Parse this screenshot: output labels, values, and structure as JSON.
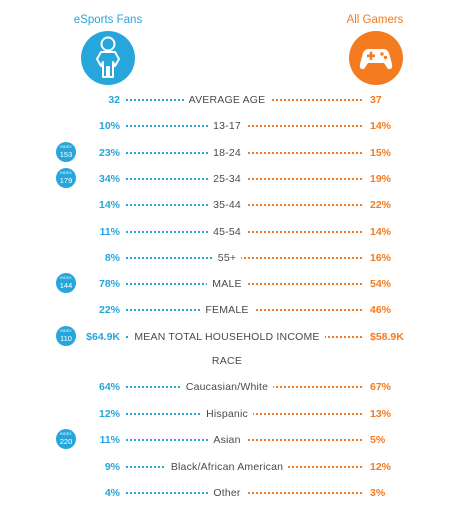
{
  "headers": {
    "left": "eSports Fans",
    "right": "All Gamers"
  },
  "colors": {
    "fans": "#27a6dc",
    "gamers": "#f47b20",
    "text": "#4a4a4a"
  },
  "icons": {
    "left": "person-icon",
    "right": "gamepad-icon"
  },
  "index_label": "INDEX",
  "rows": [
    {
      "label": "AVERAGE AGE",
      "fans": "32",
      "gamers": "37",
      "index": null
    },
    {
      "label": "13-17",
      "fans": "10%",
      "gamers": "14%",
      "index": null
    },
    {
      "label": "18-24",
      "fans": "23%",
      "gamers": "15%",
      "index": "153"
    },
    {
      "label": "25-34",
      "fans": "34%",
      "gamers": "19%",
      "index": "179"
    },
    {
      "label": "35-44",
      "fans": "14%",
      "gamers": "22%",
      "index": null
    },
    {
      "label": "45-54",
      "fans": "11%",
      "gamers": "14%",
      "index": null
    },
    {
      "label": "55+",
      "fans": "8%",
      "gamers": "16%",
      "index": null
    },
    {
      "label": "MALE",
      "fans": "78%",
      "gamers": "54%",
      "index": "144"
    },
    {
      "label": "FEMALE",
      "fans": "22%",
      "gamers": "46%",
      "index": null
    },
    {
      "label": "MEAN TOTAL HOUSEHOLD INCOME",
      "fans": "$64.9K",
      "gamers": "$58.9K",
      "index": "110"
    }
  ],
  "race_title": "RACE",
  "race_rows": [
    {
      "label": "Caucasian/White",
      "fans": "64%",
      "gamers": "67%",
      "index": null
    },
    {
      "label": "Hispanic",
      "fans": "12%",
      "gamers": "13%",
      "index": null
    },
    {
      "label": "Asian",
      "fans": "11%",
      "gamers": "5%",
      "index": "220"
    },
    {
      "label": "Black/African American",
      "fans": "9%",
      "gamers": "12%",
      "index": null
    },
    {
      "label": "Other",
      "fans": "4%",
      "gamers": "3%",
      "index": null
    }
  ],
  "chart_data": {
    "type": "table",
    "columns": [
      "eSports Fans",
      "All Gamers"
    ],
    "rows": [
      {
        "label": "AVERAGE AGE",
        "esports_fans": 32,
        "all_gamers": 37,
        "index": null
      },
      {
        "label": "13-17",
        "esports_fans": 10,
        "all_gamers": 14,
        "index": null
      },
      {
        "label": "18-24",
        "esports_fans": 23,
        "all_gamers": 15,
        "index": 153
      },
      {
        "label": "25-34",
        "esports_fans": 34,
        "all_gamers": 19,
        "index": 179
      },
      {
        "label": "35-44",
        "esports_fans": 14,
        "all_gamers": 22,
        "index": null
      },
      {
        "label": "45-54",
        "esports_fans": 11,
        "all_gamers": 14,
        "index": null
      },
      {
        "label": "55+",
        "esports_fans": 8,
        "all_gamers": 16,
        "index": null
      },
      {
        "label": "MALE",
        "esports_fans": 78,
        "all_gamers": 54,
        "index": 144
      },
      {
        "label": "FEMALE",
        "esports_fans": 22,
        "all_gamers": 46,
        "index": null
      },
      {
        "label": "MEAN TOTAL HOUSEHOLD INCOME",
        "esports_fans": 64.9,
        "all_gamers": 58.9,
        "index": 110
      },
      {
        "label": "Caucasian/White",
        "esports_fans": 64,
        "all_gamers": 67,
        "index": null
      },
      {
        "label": "Hispanic",
        "esports_fans": 12,
        "all_gamers": 13,
        "index": null
      },
      {
        "label": "Asian",
        "esports_fans": 11,
        "all_gamers": 5,
        "index": 220
      },
      {
        "label": "Black/African American",
        "esports_fans": 9,
        "all_gamers": 12,
        "index": null
      },
      {
        "label": "Other",
        "esports_fans": 4,
        "all_gamers": 3,
        "index": null
      }
    ]
  }
}
